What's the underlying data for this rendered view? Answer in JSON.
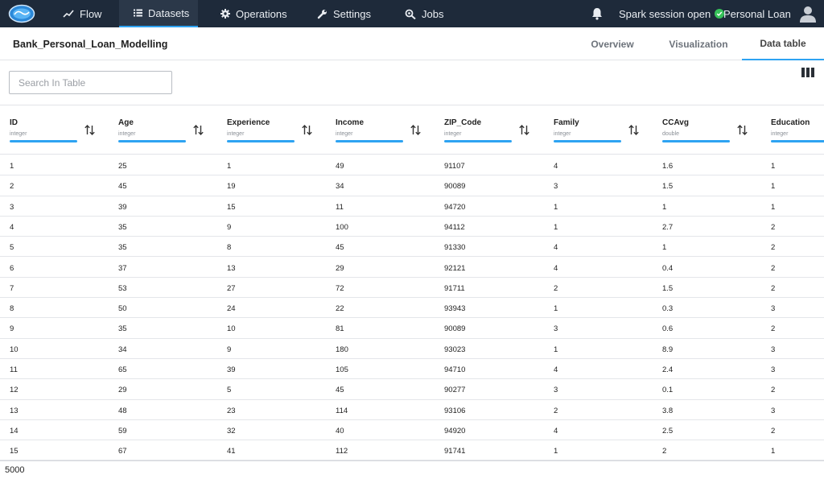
{
  "nav": {
    "items": [
      {
        "label": "Flow",
        "icon": "trending-up-icon"
      },
      {
        "label": "Datasets",
        "icon": "list-icon"
      },
      {
        "label": "Operations",
        "icon": "gear-icon"
      },
      {
        "label": "Settings",
        "icon": "wrench-icon"
      },
      {
        "label": "Jobs",
        "icon": "search-gear-icon"
      }
    ],
    "active": "Datasets",
    "session_status": "Spark session open",
    "project": "Personal Loan"
  },
  "dataset": {
    "title": "Bank_Personal_Loan_Modelling",
    "tabs": [
      "Overview",
      "Visualization",
      "Data table"
    ],
    "active_tab": "Data table"
  },
  "search": {
    "placeholder": "Search In Table",
    "value": ""
  },
  "table": {
    "columns": [
      {
        "name": "ID",
        "type": "integer"
      },
      {
        "name": "Age",
        "type": "integer"
      },
      {
        "name": "Experience",
        "type": "integer"
      },
      {
        "name": "Income",
        "type": "integer"
      },
      {
        "name": "ZIP_Code",
        "type": "integer"
      },
      {
        "name": "Family",
        "type": "integer"
      },
      {
        "name": "CCAvg",
        "type": "double"
      },
      {
        "name": "Education",
        "type": "integer"
      }
    ],
    "rows": [
      [
        "1",
        "25",
        "1",
        "49",
        "91107",
        "4",
        "1.6",
        "1"
      ],
      [
        "2",
        "45",
        "19",
        "34",
        "90089",
        "3",
        "1.5",
        "1"
      ],
      [
        "3",
        "39",
        "15",
        "11",
        "94720",
        "1",
        "1",
        "1"
      ],
      [
        "4",
        "35",
        "9",
        "100",
        "94112",
        "1",
        "2.7",
        "2"
      ],
      [
        "5",
        "35",
        "8",
        "45",
        "91330",
        "4",
        "1",
        "2"
      ],
      [
        "6",
        "37",
        "13",
        "29",
        "92121",
        "4",
        "0.4",
        "2"
      ],
      [
        "7",
        "53",
        "27",
        "72",
        "91711",
        "2",
        "1.5",
        "2"
      ],
      [
        "8",
        "50",
        "24",
        "22",
        "93943",
        "1",
        "0.3",
        "3"
      ],
      [
        "9",
        "35",
        "10",
        "81",
        "90089",
        "3",
        "0.6",
        "2"
      ],
      [
        "10",
        "34",
        "9",
        "180",
        "93023",
        "1",
        "8.9",
        "3"
      ],
      [
        "11",
        "65",
        "39",
        "105",
        "94710",
        "4",
        "2.4",
        "3"
      ],
      [
        "12",
        "29",
        "5",
        "45",
        "90277",
        "3",
        "0.1",
        "2"
      ],
      [
        "13",
        "48",
        "23",
        "114",
        "93106",
        "2",
        "3.8",
        "3"
      ],
      [
        "14",
        "59",
        "32",
        "40",
        "94920",
        "4",
        "2.5",
        "2"
      ],
      [
        "15",
        "67",
        "41",
        "112",
        "91741",
        "1",
        "2",
        "1"
      ]
    ],
    "row_count": "5000"
  },
  "colors": {
    "nav_bg": "#1e2a3a",
    "accent": "#2ea3f2",
    "ok": "#37c15a"
  }
}
